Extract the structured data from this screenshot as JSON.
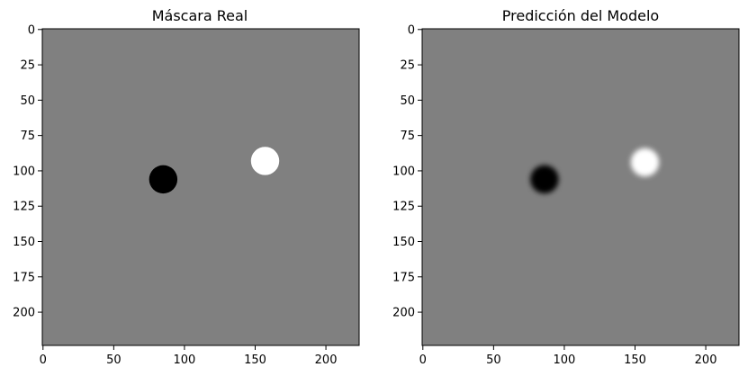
{
  "chart_data": [
    {
      "type": "heatmap",
      "title": "Máscara Real",
      "image_size": [
        224,
        224
      ],
      "colormap": "gray",
      "background_value": 0.5,
      "xticks": [
        0,
        50,
        100,
        150,
        200
      ],
      "yticks": [
        0,
        25,
        50,
        75,
        100,
        125,
        150,
        175,
        200
      ],
      "blobs": [
        {
          "cx": 85,
          "cy": 106,
          "r": 10,
          "value": 0.0,
          "edge": "hard"
        },
        {
          "cx": 157,
          "cy": 93,
          "r": 10,
          "value": 1.0,
          "edge": "hard"
        }
      ]
    },
    {
      "type": "heatmap",
      "title": "Predicción del Modelo",
      "image_size": [
        224,
        224
      ],
      "colormap": "gray",
      "background_value": 0.5,
      "xticks": [
        0,
        50,
        100,
        150,
        200
      ],
      "yticks": [
        0,
        25,
        50,
        75,
        100,
        125,
        150,
        175,
        200
      ],
      "blobs": [
        {
          "cx": 86,
          "cy": 106,
          "r": 10,
          "value": 0.0,
          "edge": "soft"
        },
        {
          "cx": 157,
          "cy": 94,
          "r": 10,
          "value": 1.0,
          "edge": "soft"
        }
      ]
    }
  ]
}
